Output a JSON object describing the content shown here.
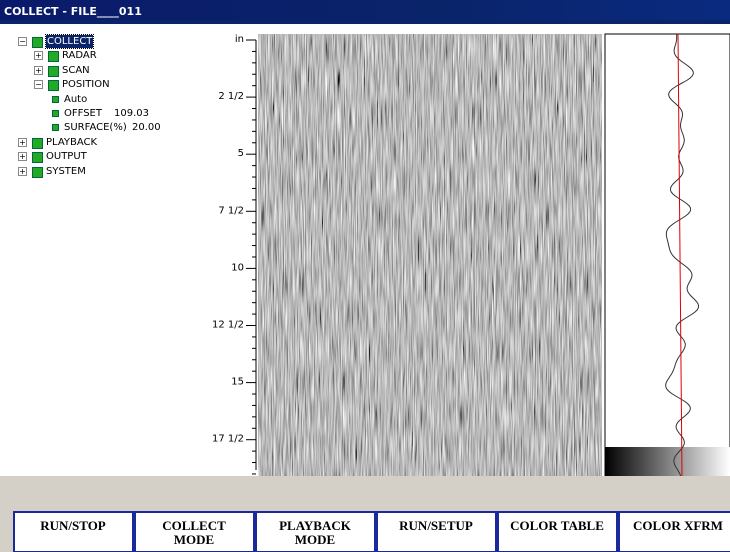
{
  "window": {
    "title": "COLLECT - FILE____011"
  },
  "tree": [
    {
      "label": "COLLECT",
      "children": [
        {
          "label": "RADAR"
        },
        {
          "label": "SCAN"
        },
        {
          "label": "POSITION",
          "children": [
            {
              "label": "Auto"
            },
            {
              "label": "OFFSET",
              "value": "109.03"
            },
            {
              "label": "SURFACE(%)",
              "value": "20.00"
            }
          ]
        }
      ]
    },
    {
      "label": "PLAYBACK"
    },
    {
      "label": "OUTPUT"
    },
    {
      "label": "SYSTEM"
    }
  ],
  "depth_scale": {
    "labels": [
      "in",
      "2 1/2",
      "5",
      "7 1/2",
      "10",
      "12 1/2",
      "15",
      "17 1/2"
    ]
  },
  "buttons": [
    [
      "RUN/STOP"
    ],
    [
      "COLLECT",
      "MODE"
    ],
    [
      "PLAYBACK",
      "MODE"
    ],
    [
      "RUN/SETUP"
    ],
    [
      "COLOR TABLE"
    ],
    [
      "COLOR XFRM"
    ]
  ]
}
